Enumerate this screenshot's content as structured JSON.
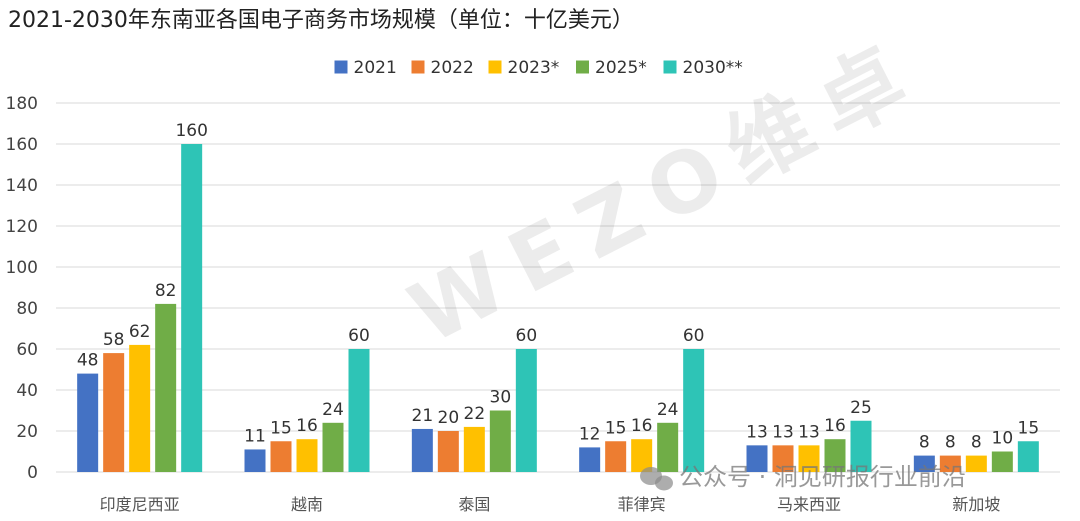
{
  "chart_data": {
    "type": "bar",
    "title": "2021-2030年东南亚各国电子商务市场规模（单位：十亿美元）",
    "categories": [
      "印度尼西亚",
      "越南",
      "泰国",
      "菲律宾",
      "马来西亚",
      "新加坡"
    ],
    "series": [
      {
        "name": "2021",
        "color": "#4472c4",
        "values": [
          48,
          11,
          21,
          12,
          13,
          8
        ]
      },
      {
        "name": "2022",
        "color": "#ed7d31",
        "values": [
          58,
          15,
          20,
          15,
          13,
          8
        ]
      },
      {
        "name": "2023*",
        "color": "#ffc000",
        "values": [
          62,
          16,
          22,
          16,
          13,
          8
        ]
      },
      {
        "name": "2025*",
        "color": "#70ad47",
        "values": [
          82,
          24,
          30,
          24,
          16,
          10
        ]
      },
      {
        "name": "2030**",
        "color": "#2ec4b6",
        "values": [
          160,
          60,
          60,
          60,
          25,
          15
        ]
      }
    ],
    "ylim": [
      0,
      180
    ],
    "yticks": [
      0,
      20,
      40,
      60,
      80,
      100,
      120,
      140,
      160,
      180
    ],
    "grid": true,
    "legend_position": "top-center"
  },
  "watermarks": {
    "brand": "WEZO维卓",
    "source": "公众号 · 洞见研报行业前沿",
    "icon": "wechat-icon"
  }
}
